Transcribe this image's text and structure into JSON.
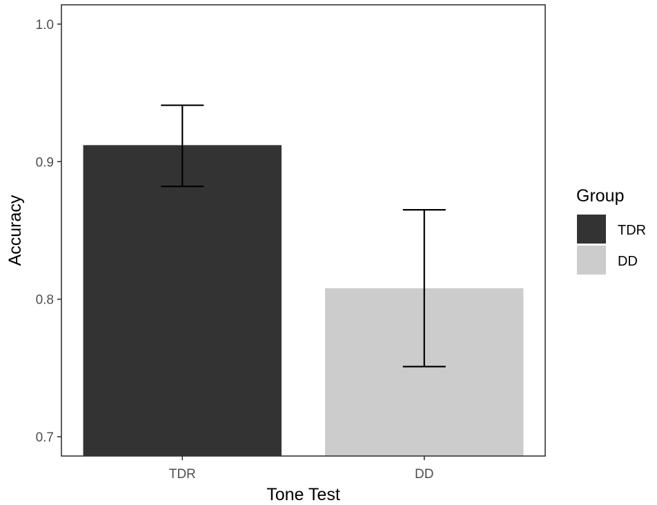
{
  "chart_data": {
    "type": "bar",
    "categories": [
      "TDR",
      "DD"
    ],
    "values": [
      0.912,
      0.808
    ],
    "error_bars": [
      {
        "low": 0.882,
        "high": 0.941
      },
      {
        "low": 0.751,
        "high": 0.865
      }
    ],
    "colors": [
      "#333333",
      "#cccccc"
    ],
    "xlabel": "Tone Test",
    "ylabel": "Accuracy",
    "ylim": [
      0.686,
      1.014
    ],
    "yticks": [
      0.7,
      0.8,
      0.9,
      1.0
    ],
    "ytick_labels": [
      "0.7",
      "0.8",
      "0.9",
      "1.0"
    ],
    "grid": false,
    "legend": {
      "title": "Group",
      "position": "right",
      "entries": [
        {
          "label": "TDR",
          "color": "#333333"
        },
        {
          "label": "DD",
          "color": "#cccccc"
        }
      ]
    }
  }
}
